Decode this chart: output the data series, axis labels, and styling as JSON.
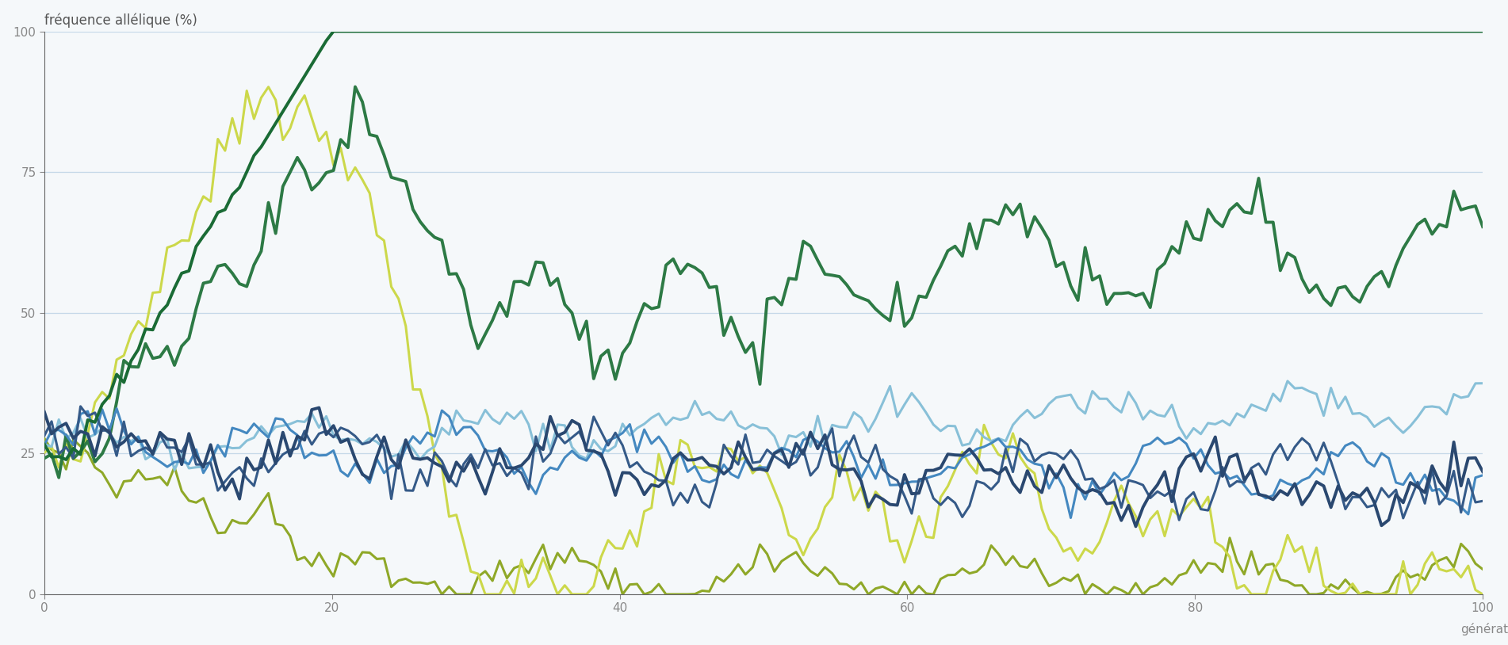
{
  "title": "fréquence allélique (%)",
  "xlabel": "générations",
  "xlim": [
    0,
    100
  ],
  "ylim": [
    0,
    100
  ],
  "xticks": [
    0,
    20,
    40,
    60,
    80,
    100
  ],
  "yticks": [
    0,
    25,
    50,
    75,
    100
  ],
  "background_color": "#f5f8fa",
  "grid_color": "#c5d8e8",
  "title_color": "#555555",
  "axis_color": "#666666",
  "tick_color": "#888888",
  "figsize": [
    19.02,
    8.14
  ],
  "dpi": 100,
  "line_colors": {
    "dark_green": "#1a6b35",
    "medium_green": "#2d7a45",
    "olive": "#8fa828",
    "yellow_green": "#ccd84a",
    "light_blue": "#88c0d8",
    "medium_blue": "#4488c0",
    "dark_navy1": "#2a4870",
    "dark_navy2": "#355a88"
  }
}
